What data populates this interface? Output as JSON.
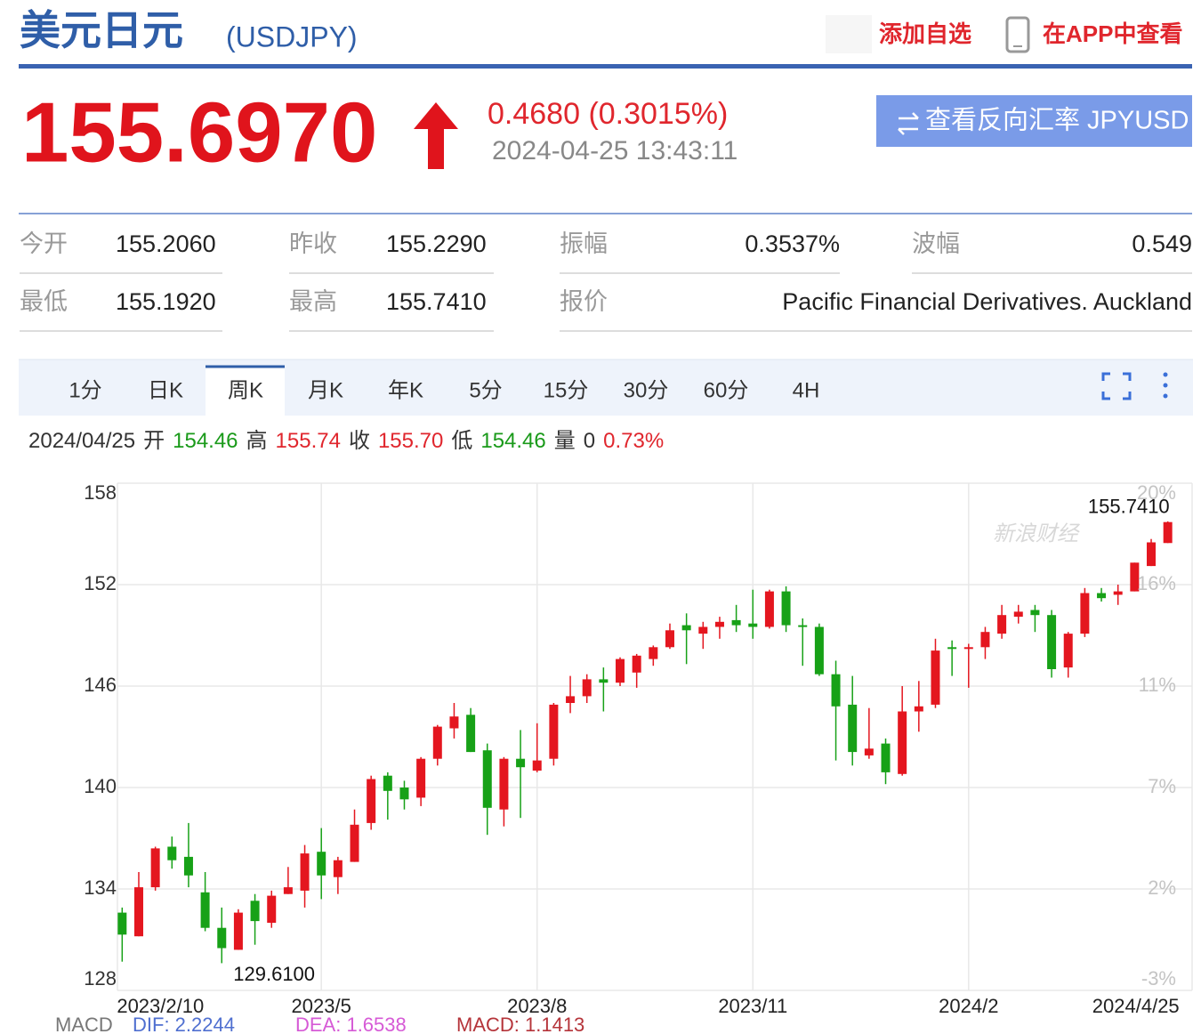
{
  "header": {
    "title": "美元日元",
    "symbol": "(USDJPY)",
    "add_watch": "添加自选",
    "open_app": "在APP中查看"
  },
  "quote": {
    "price": "155.6970",
    "change": "0.4680 (0.3015%)",
    "time": "2024-04-25 13:43:11",
    "inverse_button": "查看反向汇率 JPYUSD"
  },
  "stats": [
    [
      {
        "label": "今开",
        "value": "155.2060"
      },
      {
        "label": "昨收",
        "value": "155.2290"
      },
      {
        "label": "振幅",
        "value": "0.3537%"
      },
      {
        "label": "波幅",
        "value": "0.549"
      }
    ],
    [
      {
        "label": "最低",
        "value": "155.1920"
      },
      {
        "label": "最高",
        "value": "155.7410"
      },
      {
        "label": "报价",
        "value": "Pacific Financial Derivatives. Auckland"
      }
    ]
  ],
  "tabs": {
    "items": [
      "1分",
      "日K",
      "周K",
      "月K",
      "年K",
      "5分",
      "15分",
      "30分",
      "60分",
      "4H"
    ],
    "active": 2
  },
  "info_line": [
    {
      "text": "2024/04/25",
      "color": "#333333"
    },
    {
      "text": "开",
      "color": "#333333"
    },
    {
      "text": "154.46",
      "color": "#1a9a1a"
    },
    {
      "text": "高",
      "color": "#333333"
    },
    {
      "text": "155.74",
      "color": "#e0262d"
    },
    {
      "text": "收",
      "color": "#333333"
    },
    {
      "text": "155.70",
      "color": "#e0262d"
    },
    {
      "text": "低",
      "color": "#333333"
    },
    {
      "text": "154.46",
      "color": "#1a9a1a"
    },
    {
      "text": "量",
      "color": "#333333"
    },
    {
      "text": "0",
      "color": "#333333"
    },
    {
      "text": "0.73%",
      "color": "#e0262d"
    }
  ],
  "chart_data": {
    "type": "candlestick",
    "watermark": "新浪财经",
    "up_color": "#e4161f",
    "down_color": "#17a117",
    "grid": true,
    "ylim": [
      128,
      158
    ],
    "yticks": [
      128,
      134,
      140,
      146,
      152,
      158
    ],
    "y2lim": [
      -2.6,
      20.2
    ],
    "y2ticks": [
      {
        "value": -2.6,
        "label": "-3%"
      },
      {
        "value": 1.96,
        "label": "2%"
      },
      {
        "value": 6.52,
        "label": "7%"
      },
      {
        "value": 11.08,
        "label": "11%"
      },
      {
        "value": 15.64,
        "label": "16%"
      },
      {
        "value": 20.2,
        "label": "20%"
      }
    ],
    "categories": [
      "2023/2/10",
      null,
      null,
      null,
      null,
      null,
      null,
      null,
      null,
      null,
      null,
      null,
      "2023/5",
      null,
      null,
      null,
      null,
      null,
      null,
      null,
      null,
      null,
      null,
      null,
      null,
      "2023/8",
      null,
      null,
      null,
      null,
      null,
      null,
      null,
      null,
      null,
      null,
      null,
      null,
      "2023/11",
      null,
      null,
      null,
      null,
      null,
      null,
      null,
      null,
      null,
      null,
      null,
      null,
      "2024/2",
      null,
      null,
      null,
      null,
      null,
      null,
      null,
      null,
      null,
      null,
      null,
      "2024/4/25"
    ],
    "open": [
      132.6,
      131.2,
      134.1,
      136.5,
      135.9,
      133.8,
      131.7,
      130.4,
      133.3,
      132.0,
      133.7,
      133.9,
      136.2,
      134.7,
      135.6,
      137.9,
      140.7,
      140.0,
      139.4,
      141.7,
      143.5,
      144.3,
      142.2,
      138.7,
      141.7,
      141.0,
      141.7,
      145.0,
      145.4,
      146.4,
      146.2,
      146.8,
      147.6,
      148.3,
      149.6,
      149.1,
      149.5,
      149.9,
      149.7,
      149.5,
      151.6,
      149.6,
      149.5,
      146.7,
      144.9,
      141.9,
      142.6,
      140.8,
      144.5,
      144.9,
      148.3,
      148.2,
      148.3,
      149.1,
      150.1,
      150.5,
      150.2,
      147.1,
      149.1,
      151.5,
      151.4,
      151.6,
      153.1,
      154.46
    ],
    "close": [
      131.3,
      134.1,
      136.4,
      135.7,
      134.8,
      131.7,
      130.5,
      132.6,
      132.1,
      133.6,
      134.1,
      136.1,
      134.8,
      135.7,
      137.8,
      140.5,
      139.8,
      139.3,
      141.7,
      143.6,
      144.2,
      142.1,
      138.8,
      141.7,
      141.2,
      141.6,
      144.9,
      145.4,
      146.4,
      146.2,
      147.6,
      147.8,
      148.3,
      149.3,
      149.3,
      149.5,
      149.8,
      149.6,
      149.5,
      151.6,
      149.6,
      149.5,
      146.7,
      144.8,
      142.1,
      142.3,
      140.9,
      144.5,
      144.8,
      148.1,
      148.2,
      148.3,
      149.2,
      150.2,
      150.4,
      150.2,
      147.0,
      149.1,
      151.5,
      151.2,
      151.6,
      153.3,
      154.5,
      155.7
    ],
    "high": [
      132.9,
      135.0,
      136.5,
      137.1,
      137.9,
      135.0,
      132.9,
      132.8,
      133.7,
      133.9,
      135.3,
      136.6,
      137.6,
      135.9,
      138.7,
      140.7,
      140.9,
      140.4,
      141.8,
      143.7,
      145.0,
      144.7,
      142.6,
      141.8,
      143.4,
      143.8,
      145.0,
      146.6,
      146.7,
      147.1,
      147.7,
      147.9,
      148.4,
      149.7,
      150.3,
      149.8,
      150.1,
      150.8,
      151.7,
      151.7,
      151.9,
      150.0,
      149.7,
      147.5,
      146.6,
      144.7,
      142.9,
      146.0,
      146.3,
      148.8,
      148.7,
      148.5,
      149.5,
      150.8,
      150.8,
      150.8,
      150.5,
      149.2,
      151.8,
      151.8,
      152.0,
      153.3,
      154.7,
      155.741
    ],
    "low": [
      129.7,
      131.2,
      133.9,
      135.2,
      134.1,
      131.5,
      129.61,
      130.4,
      130.7,
      131.7,
      133.7,
      132.9,
      133.4,
      133.7,
      135.6,
      137.5,
      138.1,
      138.7,
      138.9,
      141.3,
      142.9,
      142.1,
      137.2,
      137.7,
      138.2,
      140.9,
      141.3,
      144.4,
      145.0,
      144.5,
      146.0,
      145.9,
      147.2,
      148.2,
      147.3,
      148.2,
      148.8,
      149.2,
      148.8,
      149.4,
      149.2,
      147.2,
      146.6,
      141.6,
      141.3,
      141.7,
      140.2,
      140.7,
      143.3,
      144.7,
      146.6,
      145.9,
      147.6,
      148.8,
      149.7,
      149.2,
      146.5,
      146.5,
      148.9,
      151.0,
      150.8,
      151.6,
      153.1,
      154.46
    ],
    "annotations": [
      {
        "value": 155.741,
        "label": "155.7410"
      },
      {
        "value": 129.61,
        "label": "129.6100"
      }
    ],
    "indicator": [
      {
        "text": "MACD",
        "color": "#777777"
      },
      {
        "text": "DIF: 2.2244",
        "color": "#4f6fd0"
      },
      {
        "text": "DEA: 1.6538",
        "color": "#d65ad6"
      },
      {
        "text": "MACD: 1.1413",
        "color": "#b5343a"
      }
    ]
  }
}
